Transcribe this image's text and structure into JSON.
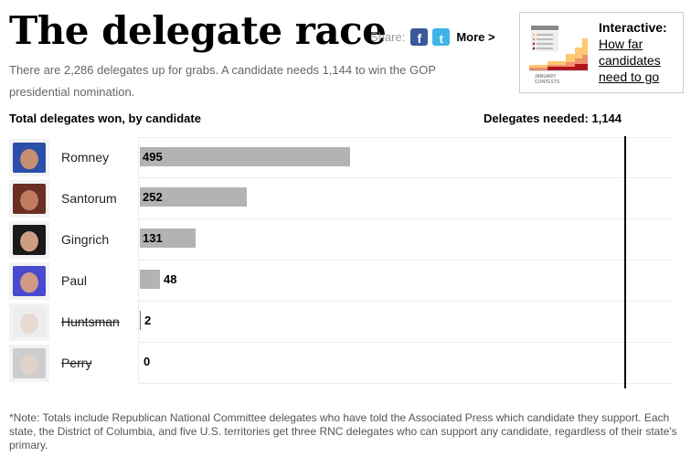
{
  "header": {
    "title": "The delegate race",
    "share_label": "Share:",
    "facebook_glyph": "f",
    "twitter_glyph": "t",
    "more_label": "More >",
    "intro": "There are 2,286 delegates up for grabs. A candidate needs 1,144 to win the GOP presidential nomination."
  },
  "promo": {
    "heading": "Interactive:",
    "link_line1": "How far",
    "link_line2": "candidates",
    "link_line3": "need to go",
    "thumb_caption_1": "JANUARY",
    "thumb_caption_2": "CONTESTS"
  },
  "chart": {
    "heading": "Total delegates won, by candidate",
    "needed_label": "Delegates needed: 1,144"
  },
  "chart_data": {
    "type": "bar",
    "orientation": "horizontal",
    "title": "Total delegates won, by candidate",
    "categories": [
      "Romney",
      "Santorum",
      "Gingrich",
      "Paul",
      "Huntsman",
      "Perry"
    ],
    "values": [
      495,
      252,
      131,
      48,
      2,
      0
    ],
    "withdrawn": [
      false,
      false,
      false,
      false,
      true,
      true
    ],
    "labels": [
      "495",
      "252",
      "131",
      "48",
      "2",
      "0"
    ],
    "reference_line": {
      "value": 1144,
      "label": "Delegates needed: 1,144"
    },
    "xlim": [
      0,
      1144
    ],
    "bar_color": "#b3b3b3",
    "grid": false,
    "legend": "none"
  },
  "candidates": [
    {
      "name": "Romney",
      "value_label": "495",
      "face_color": "#c58f72",
      "bg_color": "#2a4fa8"
    },
    {
      "name": "Santorum",
      "value_label": "252",
      "face_color": "#c07a5e",
      "bg_color": "#6a2e22"
    },
    {
      "name": "Gingrich",
      "value_label": "131",
      "face_color": "#cf9c84",
      "bg_color": "#1a1a1a"
    },
    {
      "name": "Paul",
      "value_label": "48",
      "face_color": "#d09a84",
      "bg_color": "#4a4ad0"
    },
    {
      "name": "Huntsman",
      "value_label": "2",
      "face_color": "#d8b8a8",
      "bg_color": "#e6e6e6"
    },
    {
      "name": "Perry",
      "value_label": "0",
      "face_color": "#c8ab98",
      "bg_color": "#9e9e9e"
    }
  ],
  "footnote": "*Note: Totals include Republican National Committee delegates who have told the Associated Press which candidate they support. Each state, the District of Columbia, and five U.S. territories get three RNC delegates who can support any candidate, regardless of their state's primary."
}
